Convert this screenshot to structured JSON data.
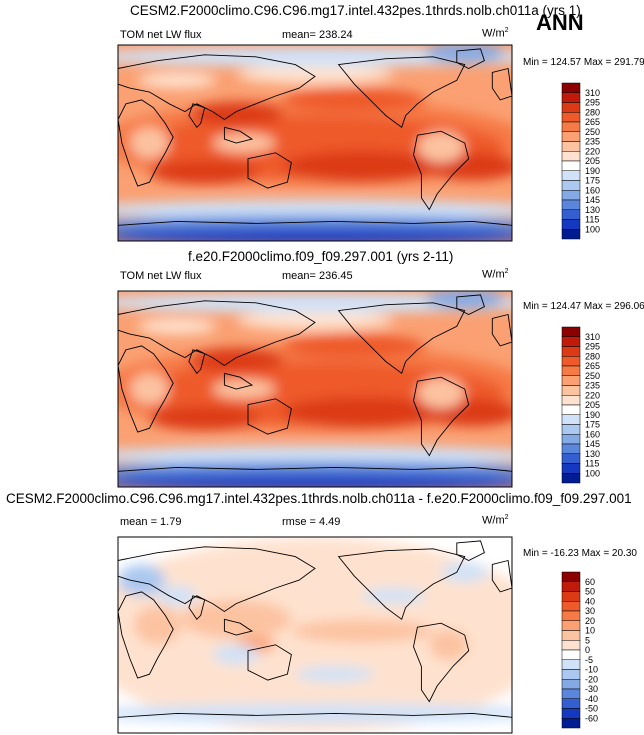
{
  "season": "ANN",
  "panels": [
    {
      "title": "CESM2.F2000climo.C96.C96.mg17.intel.432pes.1thrds.nolb.ch011a (yrs 1)",
      "variable": "TOM net LW flux",
      "stat1": "mean= 238.24",
      "stat2": "",
      "units": "W/m",
      "units_sup": "2",
      "minmax": "Min = 124.57 Max = 291.79"
    },
    {
      "title": "f.e20.F2000climo.f09_f09.297.001 (yrs 2-11)",
      "variable": "TOM net LW flux",
      "stat1": "mean= 236.45",
      "stat2": "",
      "units": "W/m",
      "units_sup": "2",
      "minmax": "Min = 124.47 Max = 296.06"
    },
    {
      "title": "CESM2.F2000climo.C96.C96.mg17.intel.432pes.1thrds.nolb.ch011a - f.e20.F2000climo.f09_f09.297.001",
      "variable": "",
      "stat1": "mean =   1.79",
      "stat2": "rmse =   4.49",
      "units": "W/m",
      "units_sup": "2",
      "minmax": "Min = -16.23 Max =  20.30"
    }
  ],
  "chart_data": [
    {
      "type": "heatmap",
      "title": "CESM2.F2000climo.C96.C96.mg17.intel.432pes.1thrds.nolb.ch011a (yrs 1)",
      "field": "TOM net LW flux",
      "units": "W/m2",
      "mean": 238.24,
      "min": 124.57,
      "max": 291.79,
      "colorbar": {
        "levels": [
          310,
          295,
          280,
          265,
          250,
          235,
          220,
          205,
          190,
          175,
          160,
          145,
          130,
          115,
          100
        ],
        "colors": [
          "#8b0000",
          "#bf1a0a",
          "#dc3a14",
          "#ee5a2a",
          "#f67a46",
          "#faa072",
          "#fcc3a1",
          "#fee2cf",
          "#ffffff",
          "#cfe2f8",
          "#aac8f0",
          "#84aae6",
          "#5a86dc",
          "#345fd0",
          "#1438bf",
          "#001c93"
        ]
      }
    },
    {
      "type": "heatmap",
      "title": "f.e20.F2000climo.f09_f09.297.001 (yrs 2-11)",
      "field": "TOM net LW flux",
      "units": "W/m2",
      "mean": 236.45,
      "min": 124.47,
      "max": 296.06,
      "colorbar": {
        "levels": [
          310,
          295,
          280,
          265,
          250,
          235,
          220,
          205,
          190,
          175,
          160,
          145,
          130,
          115,
          100
        ],
        "colors": [
          "#8b0000",
          "#bf1a0a",
          "#dc3a14",
          "#ee5a2a",
          "#f67a46",
          "#faa072",
          "#fcc3a1",
          "#fee2cf",
          "#ffffff",
          "#cfe2f8",
          "#aac8f0",
          "#84aae6",
          "#5a86dc",
          "#345fd0",
          "#1438bf",
          "#001c93"
        ]
      }
    },
    {
      "type": "heatmap",
      "title": "CESM2.F2000climo.C96.C96.mg17.intel.432pes.1thrds.nolb.ch011a - f.e20.F2000climo.f09_f09.297.001",
      "units": "W/m2",
      "mean": 1.79,
      "rmse": 4.49,
      "min": -16.23,
      "max": 20.3,
      "colorbar": {
        "levels": [
          60,
          50,
          40,
          30,
          20,
          10,
          5,
          0,
          -5,
          -10,
          -20,
          -30,
          -40,
          -50,
          -60
        ],
        "colors": [
          "#8b0000",
          "#bf1a0a",
          "#dc3a14",
          "#ee5a2a",
          "#f67a46",
          "#faa072",
          "#fcc3a1",
          "#fee2cf",
          "#ffffff",
          "#cfe2f8",
          "#aac8f0",
          "#84aae6",
          "#5a86dc",
          "#345fd0",
          "#1438bf",
          "#001c93"
        ]
      }
    }
  ]
}
